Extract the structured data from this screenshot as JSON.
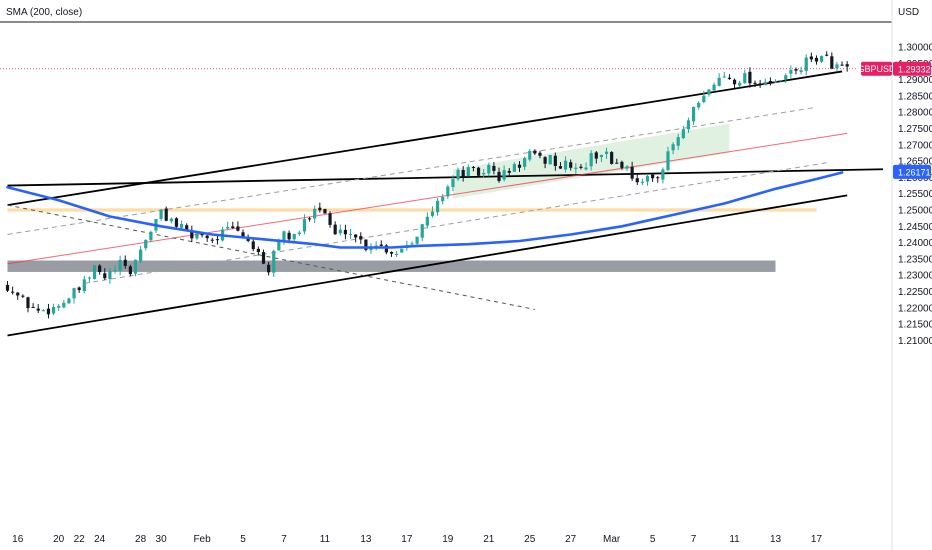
{
  "header": {
    "indicator": "SMA (200, close)",
    "currency": "USD"
  },
  "colors": {
    "up": "#26a69a",
    "down": "#131722",
    "sma": "#2962ff",
    "trendline": "#000000",
    "channel_mid": "#f23645",
    "channel_dash": "#9e9e9e",
    "zone_gray": "#787b86",
    "zone_orange": "#ffcc80",
    "zone_green": "#c8e6c9",
    "price_tag": "#e91e63",
    "level_tag": "#2962ff"
  },
  "chart_data": {
    "type": "candlestick",
    "title": "",
    "symbol": "GBPUSD",
    "x_tick_labels": [
      "16",
      "20",
      "22",
      "24",
      "28",
      "30",
      "Feb",
      "5",
      "7",
      "11",
      "13",
      "17",
      "19",
      "21",
      "25",
      "27",
      "Mar",
      "5",
      "7",
      "11",
      "13",
      "17"
    ],
    "y_ticks": [
      1.21,
      1.215,
      1.22,
      1.225,
      1.23,
      1.235,
      1.24,
      1.245,
      1.25,
      1.255,
      1.26,
      1.265,
      1.27,
      1.275,
      1.28,
      1.285,
      1.29,
      1.295,
      1.3
    ],
    "y_tick_labels": [
      "1.21000",
      "1.21500",
      "1.22000",
      "1.22500",
      "1.23000",
      "1.23500",
      "1.24000",
      "1.24500",
      "1.25000",
      "1.25500",
      "1.26000",
      "1.26500",
      "1.27000",
      "1.27500",
      "1.28000",
      "1.28500",
      "1.29000",
      "1.29500",
      "1.30000"
    ],
    "ylim": [
      1.2065,
      1.3035
    ],
    "last_price": {
      "label": "GBPUSD",
      "value": "1.29332",
      "price": 1.29332
    },
    "level_marker": {
      "value": "1.26171",
      "price": 1.26171
    },
    "close_path": [
      [
        0,
        1.227
      ],
      [
        3,
        1.222
      ],
      [
        6,
        1.219
      ],
      [
        9,
        1.22
      ],
      [
        12,
        1.223
      ],
      [
        15,
        1.227
      ],
      [
        17,
        1.232
      ],
      [
        19,
        1.229
      ],
      [
        22,
        1.233
      ],
      [
        24,
        1.231
      ],
      [
        26,
        1.238
      ],
      [
        28,
        1.244
      ],
      [
        30,
        1.249
      ],
      [
        32,
        1.247
      ],
      [
        34,
        1.244
      ],
      [
        36,
        1.242
      ],
      [
        38,
        1.243
      ],
      [
        40,
        1.241
      ],
      [
        42,
        1.243
      ],
      [
        44,
        1.244
      ],
      [
        46,
        1.242
      ],
      [
        48,
        1.239
      ],
      [
        50,
        1.232
      ],
      [
        51,
        1.23
      ],
      [
        52,
        1.238
      ],
      [
        54,
        1.243
      ],
      [
        56,
        1.241
      ],
      [
        58,
        1.246
      ],
      [
        60,
        1.252
      ],
      [
        62,
        1.249
      ],
      [
        64,
        1.242
      ],
      [
        66,
        1.244
      ],
      [
        68,
        1.242
      ],
      [
        70,
        1.239
      ],
      [
        72,
        1.24
      ],
      [
        74,
        1.238
      ],
      [
        76,
        1.237
      ],
      [
        78,
        1.24
      ],
      [
        80,
        1.243
      ],
      [
        82,
        1.247
      ],
      [
        84,
        1.252
      ],
      [
        86,
        1.258
      ],
      [
        88,
        1.261
      ],
      [
        90,
        1.262
      ],
      [
        92,
        1.261
      ],
      [
        94,
        1.263
      ],
      [
        96,
        1.26
      ],
      [
        98,
        1.262
      ],
      [
        100,
        1.264
      ],
      [
        102,
        1.267
      ],
      [
        104,
        1.265
      ],
      [
        106,
        1.266
      ],
      [
        108,
        1.263
      ],
      [
        110,
        1.264
      ],
      [
        112,
        1.262
      ],
      [
        114,
        1.266
      ],
      [
        116,
        1.268
      ],
      [
        118,
        1.265
      ],
      [
        120,
        1.264
      ],
      [
        122,
        1.261
      ],
      [
        124,
        1.258
      ],
      [
        126,
        1.26
      ],
      [
        128,
        1.263
      ],
      [
        130,
        1.27
      ],
      [
        132,
        1.274
      ],
      [
        134,
        1.28
      ],
      [
        136,
        1.284
      ],
      [
        138,
        1.289
      ],
      [
        140,
        1.291
      ],
      [
        142,
        1.29
      ],
      [
        144,
        1.291
      ],
      [
        146,
        1.289
      ],
      [
        148,
        1.29
      ],
      [
        150,
        1.288
      ],
      [
        152,
        1.291
      ],
      [
        154,
        1.293
      ],
      [
        156,
        1.295
      ],
      [
        158,
        1.297
      ],
      [
        160,
        1.296
      ],
      [
        162,
        1.294
      ],
      [
        164,
        1.293
      ]
    ],
    "sma_200": [
      [
        0,
        1.257
      ],
      [
        10,
        1.253
      ],
      [
        20,
        1.248
      ],
      [
        30,
        1.245
      ],
      [
        40,
        1.2425
      ],
      [
        50,
        1.241
      ],
      [
        60,
        1.2395
      ],
      [
        65,
        1.2385
      ],
      [
        70,
        1.2385
      ],
      [
        75,
        1.2385
      ],
      [
        80,
        1.239
      ],
      [
        90,
        1.2395
      ],
      [
        100,
        1.2405
      ],
      [
        110,
        1.2425
      ],
      [
        120,
        1.245
      ],
      [
        130,
        1.2485
      ],
      [
        140,
        1.252
      ],
      [
        150,
        1.2565
      ],
      [
        158,
        1.2595
      ],
      [
        163,
        1.2615
      ]
    ],
    "lines": [
      {
        "kind": "trendline",
        "from": [
          0,
          1.2515
        ],
        "to": [
          163,
          1.2925
        ]
      },
      {
        "kind": "trendline",
        "from": [
          0,
          1.2575
        ],
        "to": [
          171,
          1.2625
        ]
      },
      {
        "kind": "trendline",
        "from": [
          0,
          1.2115
        ],
        "to": [
          164,
          1.2545
        ]
      },
      {
        "kind": "channel_mid",
        "from": [
          0,
          1.2335
        ],
        "to": [
          164,
          1.2735
        ]
      },
      {
        "kind": "channel_dash",
        "from": [
          0,
          1.2425
        ],
        "to": [
          158,
          1.2815
        ]
      },
      {
        "kind": "channel_dash",
        "from": [
          15,
          1.2275
        ],
        "to": [
          160,
          1.2645
        ]
      },
      {
        "kind": "dashed_black",
        "from": [
          0,
          1.2515
        ],
        "to": [
          103,
          1.2195
        ]
      }
    ],
    "zones": [
      {
        "kind": "zone_gray",
        "x0": 0,
        "x1": 150,
        "y0": 1.231,
        "y1": 1.2345
      },
      {
        "kind": "zone_orange",
        "x0": 0,
        "x1": 158,
        "y0": 1.2495,
        "y1": 1.2505
      },
      {
        "kind": "zone_green",
        "x0": 87,
        "x1": 141,
        "p0": [
          1.2535,
          1.2625
        ],
        "p1": [
          1.2675,
          1.2765
        ]
      }
    ],
    "grid": false,
    "legend": "none"
  }
}
